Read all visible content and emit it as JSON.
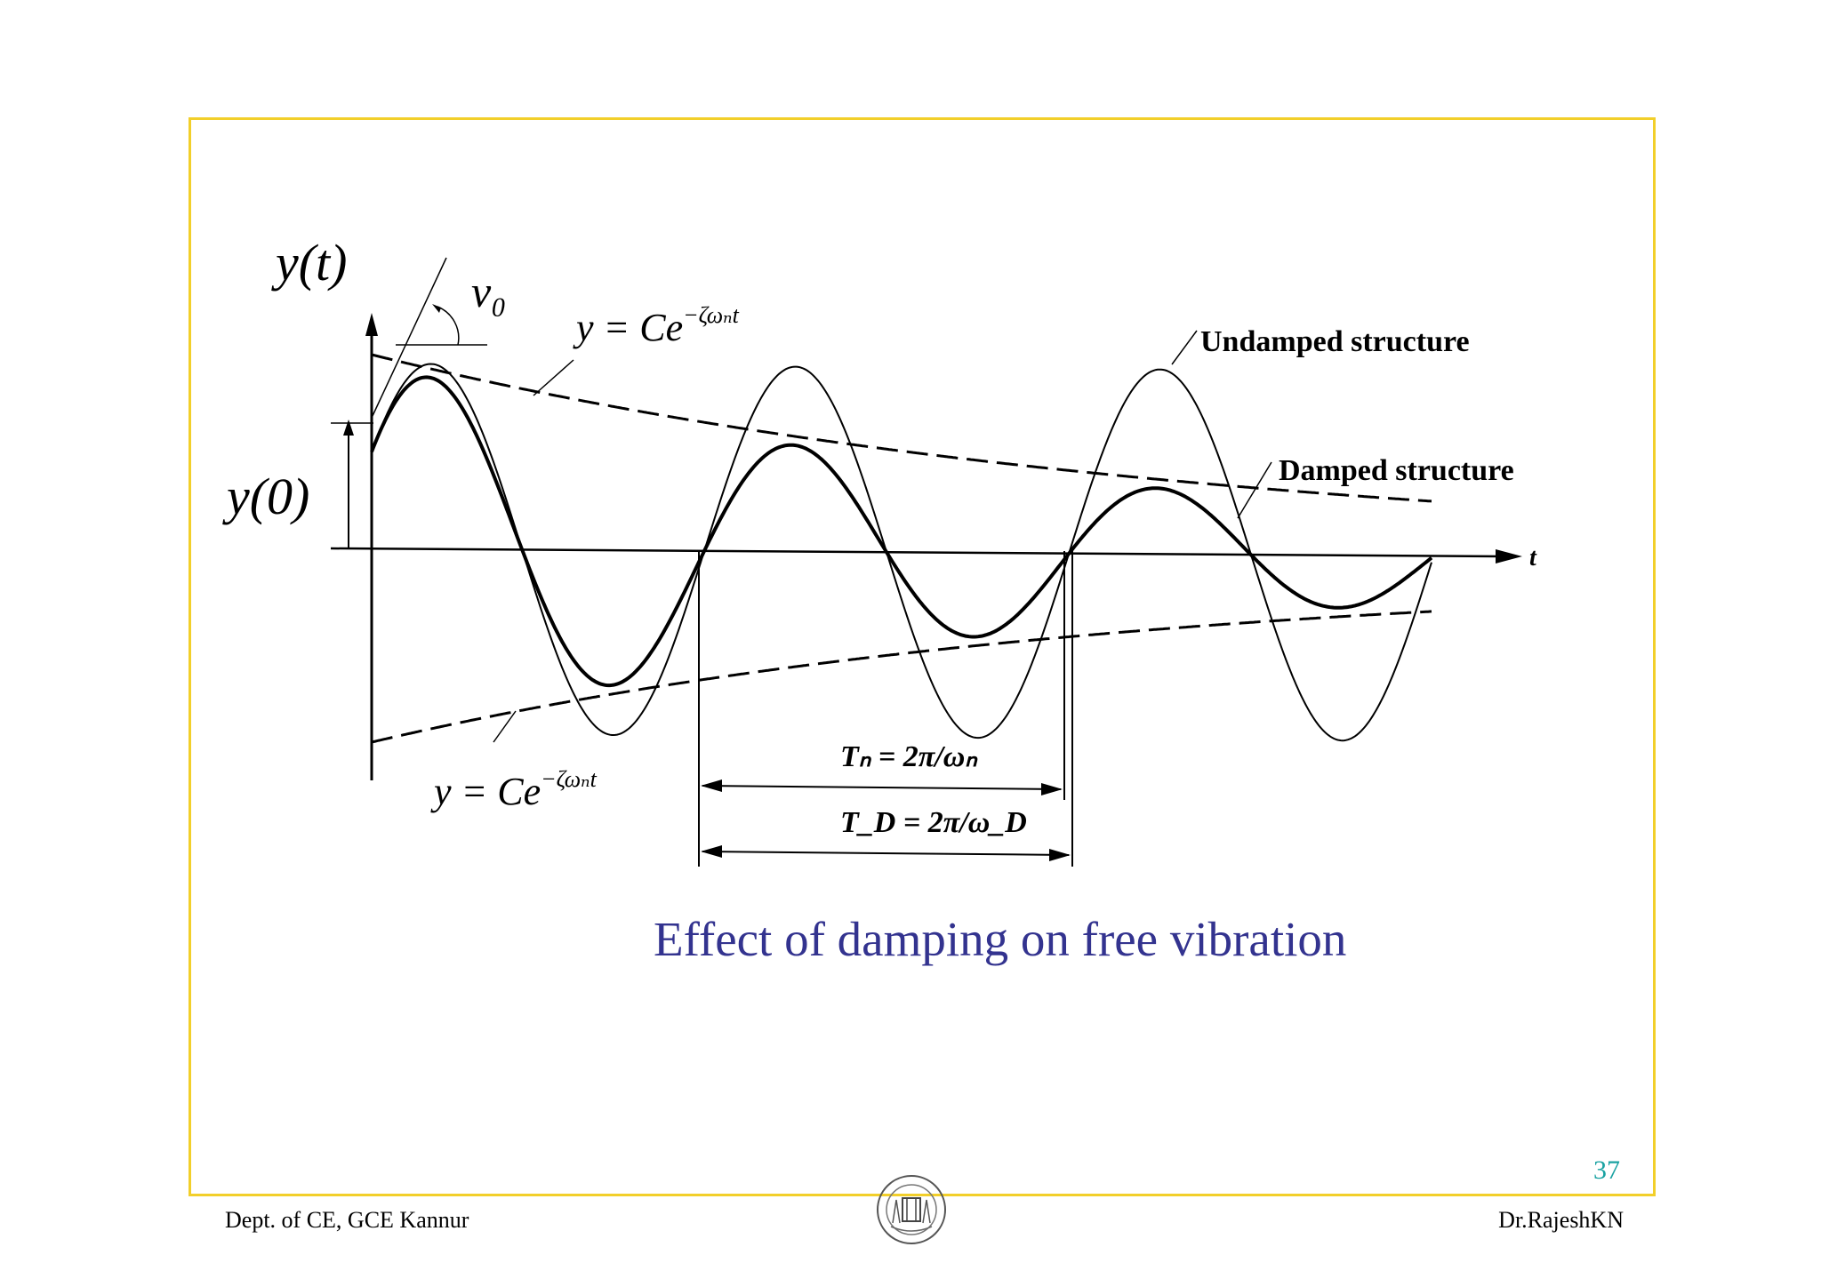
{
  "figure": {
    "axis_y_label": "y(t)",
    "axis_x_label": "t",
    "initial_velocity_label": "v₀",
    "initial_displacement_label": "y(0)",
    "upper_envelope_label": {
      "base": "y = Ce",
      "exponent": "−ζωₙt"
    },
    "lower_envelope_label": {
      "base": "y = Ce",
      "exponent": "−ζωₙt"
    },
    "undamped_label": "Undamped structure",
    "damped_label": "Damped structure",
    "natural_period_label": "Tₙ = 2π/ωₙ",
    "damped_period_label": "T_D = 2π/ω_D"
  },
  "caption": "Effect of damping on free vibration",
  "page_number": "37",
  "footer": {
    "left": "Dept. of CE, GCE Kannur",
    "right": "Dr.RajeshKN"
  },
  "colors": {
    "frame": "#f2cf2a",
    "caption": "#33338f",
    "page_number": "#1aa2a2"
  }
}
